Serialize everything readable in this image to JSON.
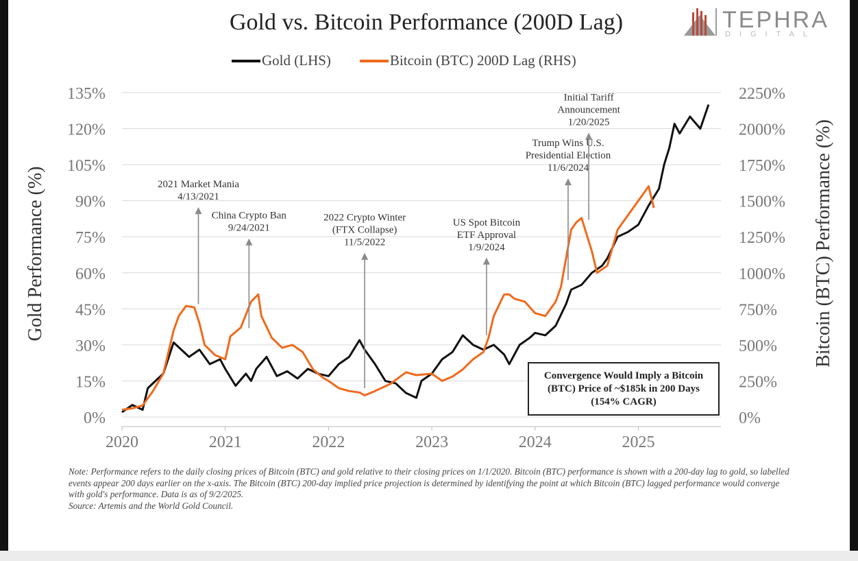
{
  "logo": {
    "name": "TEPHRA",
    "sub": "DIGITAL",
    "accent": "#b84a3a"
  },
  "footnote": {
    "note": "Note: Performance refers to the daily closing prices of Bitcoin (BTC) and gold relative to their closing prices on 1/1/2020. Bitcoin (BTC) performance is shown with a 200-day lag to gold, so labelled events appear 200 days earlier on the x-axis. The Bitcoin (BTC) 200-day implied price projection is determined by identifying the point at which Bitcoin (BTC) lagged performance would converge with gold's performance. Data is as of 9/2/2025.",
    "source": "Source: Artemis and the World Gold Council."
  },
  "chart_data": {
    "type": "line",
    "title": "Gold vs. Bitcoin Performance (200D Lag)",
    "ylabel_left": "Gold Performance (%)",
    "ylabel_right": "Bitcoin (BTC) Performance (%)",
    "x_ticks": [
      "2020",
      "2021",
      "2022",
      "2023",
      "2024",
      "2025"
    ],
    "y_left_ticks": [
      "0%",
      "15%",
      "30%",
      "45%",
      "60%",
      "75%",
      "90%",
      "105%",
      "120%",
      "135%"
    ],
    "y_right_ticks": [
      "0%",
      "250%",
      "500%",
      "750%",
      "1000%",
      "1250%",
      "1500%",
      "1750%",
      "2000%",
      "2250%"
    ],
    "ylim_left": [
      0,
      135
    ],
    "ylim_right": [
      0,
      2250
    ],
    "xlim": [
      2020.0,
      2025.8
    ],
    "grid": true,
    "legend_position": "top-center",
    "series": [
      {
        "name": "Gold (LHS)",
        "axis": "left",
        "color": "#111111",
        "x": [
          2020.0,
          2020.1,
          2020.2,
          2020.25,
          2020.3,
          2020.4,
          2020.5,
          2020.55,
          2020.6,
          2020.65,
          2020.75,
          2020.85,
          2020.95,
          2021.0,
          2021.1,
          2021.2,
          2021.25,
          2021.3,
          2021.4,
          2021.5,
          2021.6,
          2021.7,
          2021.8,
          2021.9,
          2022.0,
          2022.1,
          2022.2,
          2022.3,
          2022.35,
          2022.45,
          2022.55,
          2022.65,
          2022.75,
          2022.85,
          2022.9,
          2023.0,
          2023.1,
          2023.2,
          2023.3,
          2023.4,
          2023.5,
          2023.6,
          2023.7,
          2023.75,
          2023.85,
          2023.95,
          2024.0,
          2024.1,
          2024.2,
          2024.3,
          2024.35,
          2024.45,
          2024.55,
          2024.65,
          2024.7,
          2024.8,
          2024.9,
          2025.0,
          2025.1,
          2025.2,
          2025.25,
          2025.3,
          2025.35,
          2025.4,
          2025.5,
          2025.6,
          2025.68
        ],
        "values": [
          2,
          5,
          3,
          12,
          14,
          18,
          31,
          29,
          27,
          25,
          28,
          22,
          24,
          20,
          13,
          18,
          15,
          20,
          25,
          17,
          19,
          16,
          20,
          18,
          17,
          22,
          25,
          32,
          28,
          22,
          15,
          14,
          10,
          8,
          15,
          18,
          24,
          27,
          34,
          30,
          28,
          30,
          26,
          22,
          30,
          33,
          35,
          34,
          38,
          47,
          53,
          55,
          60,
          63,
          66,
          75,
          77,
          80,
          88,
          95,
          105,
          112,
          122,
          118,
          125,
          120,
          130
        ]
      },
      {
        "name": "Bitcoin (BTC) 200D Lag (RHS)",
        "axis": "right",
        "color": "#ef6a1c",
        "x": [
          2020.0,
          2020.1,
          2020.2,
          2020.3,
          2020.4,
          2020.5,
          2020.55,
          2020.62,
          2020.7,
          2020.75,
          2020.8,
          2020.9,
          2021.0,
          2021.05,
          2021.15,
          2021.25,
          2021.32,
          2021.35,
          2021.45,
          2021.55,
          2021.65,
          2021.75,
          2021.85,
          2021.95,
          2022.0,
          2022.1,
          2022.2,
          2022.3,
          2022.35,
          2022.45,
          2022.6,
          2022.75,
          2022.85,
          2023.0,
          2023.1,
          2023.2,
          2023.3,
          2023.4,
          2023.5,
          2023.55,
          2023.6,
          2023.7,
          2023.75,
          2023.8,
          2023.9,
          2024.0,
          2024.1,
          2024.2,
          2024.25,
          2024.3,
          2024.35,
          2024.4,
          2024.45,
          2024.55,
          2024.6,
          2024.7,
          2024.8,
          2024.9,
          2025.0,
          2025.05,
          2025.1,
          2025.15
        ],
        "values": [
          50,
          60,
          80,
          180,
          300,
          600,
          700,
          770,
          760,
          650,
          500,
          430,
          400,
          560,
          620,
          800,
          850,
          700,
          550,
          480,
          500,
          450,
          330,
          270,
          250,
          200,
          180,
          170,
          150,
          180,
          230,
          310,
          290,
          300,
          250,
          280,
          330,
          400,
          450,
          550,
          700,
          850,
          850,
          820,
          800,
          720,
          700,
          800,
          900,
          1100,
          1300,
          1350,
          1380,
          1150,
          1000,
          1050,
          1300,
          1400,
          1500,
          1550,
          1600,
          1450
        ]
      }
    ],
    "annotations": [
      {
        "lines": [
          "2021 Market Mania",
          "4/13/2021"
        ],
        "x": 2020.74,
        "arrow_from": 87,
        "arrow_to": 47,
        "axis": "left"
      },
      {
        "lines": [
          "China Crypto Ban",
          "9/24/2021"
        ],
        "x": 2021.23,
        "arrow_from": 74,
        "arrow_to": 37,
        "axis": "left"
      },
      {
        "lines": [
          "2022 Crypto Winter",
          "(FTX Collapse)",
          "11/5/2022"
        ],
        "x": 2022.35,
        "arrow_from": 68,
        "arrow_to": 12,
        "axis": "left"
      },
      {
        "lines": [
          "US Spot Bitcoin",
          "ETF Approval",
          "1/9/2024"
        ],
        "x": 2023.53,
        "arrow_from": 66,
        "arrow_to": 34,
        "axis": "left"
      },
      {
        "lines": [
          "Trump Wins U.S.",
          "Presidential Election",
          "11/6/2024"
        ],
        "x": 2024.32,
        "arrow_from": 99,
        "arrow_to": 57,
        "axis": "left"
      },
      {
        "lines": [
          "Initial Tariff",
          "Announcement",
          "1/20/2025"
        ],
        "x": 2024.52,
        "arrow_from": 118,
        "arrow_to": 82,
        "axis": "left"
      }
    ],
    "callout": "Convergence Would Imply a Bitcoin (BTC) Price of ~$185k in 200 Days (154% CAGR)"
  }
}
